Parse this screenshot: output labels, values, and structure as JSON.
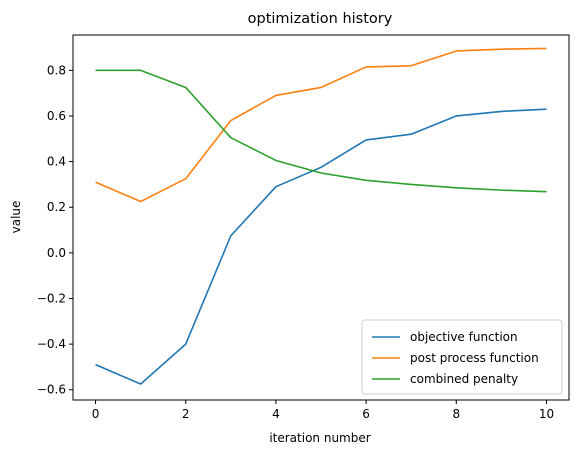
{
  "chart_data": {
    "type": "line",
    "title": "optimization history",
    "xlabel": "iteration number",
    "ylabel": "value",
    "x": [
      0,
      1,
      2,
      3,
      4,
      5,
      6,
      7,
      8,
      9,
      10
    ],
    "xlim": [
      -0.5,
      10.5
    ],
    "ylim": [
      -0.645,
      0.955
    ],
    "xticks": [
      0,
      2,
      4,
      6,
      8,
      10
    ],
    "xtick_labels": [
      "0",
      "2",
      "4",
      "6",
      "8",
      "10"
    ],
    "yticks": [
      -0.6,
      -0.4,
      -0.2,
      0.0,
      0.2,
      0.4,
      0.6,
      0.8
    ],
    "ytick_labels": [
      "−0.6",
      "−0.4",
      "−0.2",
      "0.0",
      "0.2",
      "0.4",
      "0.6",
      "0.8"
    ],
    "grid": false,
    "legend_position": "bottom-right",
    "series": [
      {
        "name": "objective function",
        "color": "#1f77b4",
        "values": [
          -0.49,
          -0.575,
          -0.4,
          0.075,
          0.29,
          0.375,
          0.495,
          0.52,
          0.6,
          0.62,
          0.63
        ]
      },
      {
        "name": "post process function",
        "color": "#ff7f0e",
        "values": [
          0.31,
          0.225,
          0.325,
          0.58,
          0.69,
          0.725,
          0.815,
          0.82,
          0.885,
          0.893,
          0.896
        ]
      },
      {
        "name": "combined penalty",
        "color": "#2ca02c",
        "values": [
          0.8,
          0.8,
          0.725,
          0.505,
          0.405,
          0.35,
          0.318,
          0.3,
          0.285,
          0.275,
          0.268
        ]
      }
    ]
  }
}
